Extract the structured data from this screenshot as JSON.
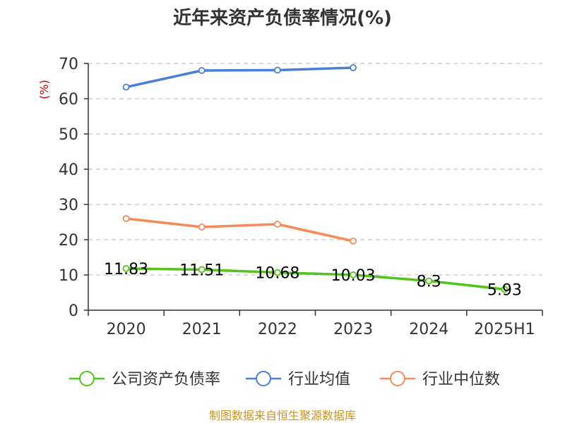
{
  "chart_data": {
    "type": "line",
    "title": "近年来资产负债率情况(%)",
    "ylabel": "(%)",
    "xlabel": "",
    "categories": [
      "2020",
      "2021",
      "2022",
      "2023",
      "2024",
      "2025H1"
    ],
    "ylim": [
      0,
      70
    ],
    "yticks": [
      0,
      10,
      20,
      30,
      40,
      50,
      60,
      70
    ],
    "grid": true,
    "legend_position": "bottom",
    "series": [
      {
        "name": "公司资产负债率",
        "color": "#52c41a",
        "values": [
          11.83,
          11.51,
          10.68,
          10.03,
          8.3,
          5.93
        ],
        "labels": [
          "11.83",
          "11.51",
          "10.68",
          "10.03",
          "8.3",
          "5.93"
        ]
      },
      {
        "name": "行业均值",
        "color": "#4a7fd6",
        "values": [
          63.3,
          68.0,
          68.1,
          68.8,
          null,
          null
        ]
      },
      {
        "name": "行业中位数",
        "color": "#f58a5a",
        "values": [
          26.0,
          23.6,
          24.4,
          19.6,
          null,
          null
        ]
      }
    ]
  },
  "source": "制图数据来自恒生聚源数据库"
}
